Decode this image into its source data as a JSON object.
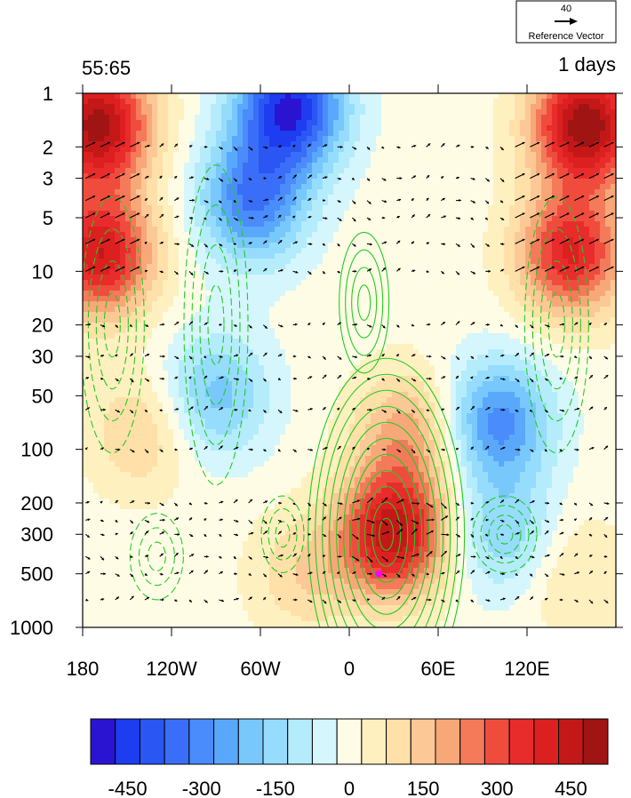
{
  "chart_data": {
    "type": "heatmap",
    "title_left": "55:65",
    "title_right": "1 days",
    "reference_vector": {
      "magnitude": "40",
      "label": "Reference Vector"
    },
    "x_ticks": [
      "180",
      "120W",
      "60W",
      "0",
      "60E",
      "120E"
    ],
    "x_tick_lon": [
      -180,
      -120,
      -60,
      0,
      60,
      120
    ],
    "xlim": [
      -180,
      180
    ],
    "y_ticks": [
      "1",
      "2",
      "3",
      "5",
      "10",
      "20",
      "30",
      "50",
      "100",
      "200",
      "300",
      "500",
      "1000"
    ],
    "y_tick_values": [
      1,
      2,
      3,
      5,
      10,
      20,
      30,
      50,
      100,
      200,
      300,
      500,
      1000
    ],
    "ylim": [
      1,
      1000
    ],
    "y_scale": "log-reversed",
    "colorbar": {
      "levels": [
        -525,
        -475,
        -425,
        -375,
        -325,
        -275,
        -225,
        -175,
        -125,
        -75,
        -25,
        25,
        75,
        125,
        175,
        225,
        275,
        325,
        375,
        425,
        475,
        525
      ],
      "colors": [
        "#2a14d2",
        "#1e3cf0",
        "#2a56f4",
        "#3a6ef8",
        "#4a8cfc",
        "#5aa8fc",
        "#78c8fc",
        "#96dcfc",
        "#b4ecfc",
        "#d4f6fc",
        "#fffce6",
        "#fff0c0",
        "#fee0a8",
        "#fcc896",
        "#f8a878",
        "#f47a5a",
        "#f04c3e",
        "#e82c2c",
        "#dc2020",
        "#c41818",
        "#a01414"
      ],
      "tick_labels": [
        "-450",
        "-300",
        "-150",
        "0",
        "150",
        "300",
        "450"
      ],
      "tick_values": [
        -450,
        -300,
        -150,
        0,
        150,
        300,
        450
      ]
    },
    "anomaly_centers": [
      {
        "lon": -170,
        "p": 1.5,
        "value": 500
      },
      {
        "lon": -168,
        "p": 8,
        "value": 420
      },
      {
        "lon": 160,
        "p": 1.5,
        "value": 520
      },
      {
        "lon": 150,
        "p": 8,
        "value": 380
      },
      {
        "lon": -40,
        "p": 1.2,
        "value": -480
      },
      {
        "lon": -65,
        "p": 4,
        "value": -320
      },
      {
        "lon": -90,
        "p": 50,
        "value": -200
      },
      {
        "lon": 30,
        "p": 300,
        "value": 460
      },
      {
        "lon": 40,
        "p": 80,
        "value": 200
      },
      {
        "lon": 100,
        "p": 70,
        "value": -300
      },
      {
        "lon": 105,
        "p": 300,
        "value": -170
      },
      {
        "lon": -140,
        "p": 80,
        "value": 130
      },
      {
        "lon": -30,
        "p": 500,
        "value": 120
      },
      {
        "lon": 150,
        "p": 500,
        "value": 90
      }
    ],
    "marker": {
      "lon": 20,
      "p": 500,
      "color": "#ff00ff"
    },
    "contour_color": "#22cc22"
  }
}
